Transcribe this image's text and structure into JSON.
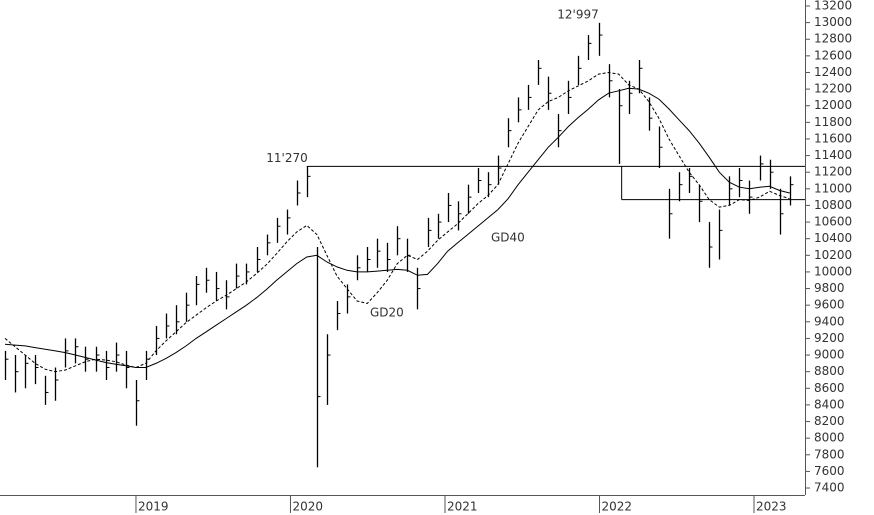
{
  "chart_data": {
    "type": "ohlc",
    "high": [
      9050,
      9000,
      9000,
      9000,
      8750,
      8850,
      9200,
      9200,
      9100,
      9100,
      9050,
      9150,
      9050,
      8700,
      9050,
      9350,
      9500,
      9600,
      9750,
      9950,
      10050,
      10000,
      9900,
      10100,
      10100,
      10300,
      10450,
      10650,
      10750,
      11100,
      11270,
      10300,
      9250,
      9650,
      9850,
      10200,
      10300,
      10400,
      10350,
      10550,
      10400,
      10050,
      10650,
      10700,
      10950,
      10850,
      11050,
      11250,
      11200,
      11400,
      11850,
      12100,
      12250,
      12550,
      12350,
      11900,
      12300,
      12600,
      12850,
      12997,
      12500,
      12200,
      12300,
      12550,
      12100,
      11750,
      11000,
      11200,
      11250,
      11050,
      10600,
      10750,
      11150,
      11250,
      11100,
      11400,
      11350,
      11000,
      11150
    ],
    "low": [
      8700,
      8550,
      8600,
      8650,
      8400,
      8450,
      8850,
      8900,
      8800,
      8800,
      8700,
      8800,
      8600,
      8150,
      8700,
      9000,
      9200,
      9250,
      9400,
      9600,
      9750,
      9650,
      9550,
      9800,
      9850,
      10000,
      10200,
      10350,
      10450,
      10800,
      10900,
      7650,
      8400,
      9300,
      9500,
      9900,
      10000,
      10050,
      10000,
      10200,
      10000,
      9550,
      10300,
      10400,
      10600,
      10500,
      10700,
      10950,
      10900,
      11050,
      11500,
      11800,
      11950,
      12250,
      11950,
      11500,
      11900,
      12250,
      12550,
      12600,
      12100,
      11300,
      11900,
      12150,
      11700,
      11250,
      10400,
      10850,
      10950,
      10600,
      10050,
      10150,
      10800,
      10900,
      10700,
      11100,
      11000,
      10450,
      10800
    ],
    "close": [
      8950,
      8800,
      8900,
      8850,
      8550,
      8700,
      9050,
      9100,
      8950,
      9000,
      8850,
      9000,
      8850,
      8450,
      8950,
      9200,
      9350,
      9400,
      9600,
      9850,
      9900,
      9800,
      9700,
      9950,
      10000,
      10150,
      10350,
      10550,
      10650,
      10950,
      11150,
      8500,
      9000,
      9500,
      9700,
      10050,
      10150,
      10250,
      10150,
      10400,
      10200,
      9800,
      10500,
      10600,
      10800,
      10700,
      10900,
      11100,
      11050,
      11250,
      11700,
      11950,
      12100,
      12450,
      12150,
      11700,
      12100,
      12450,
      12750,
      12850,
      12300,
      12000,
      12150,
      12450,
      11850,
      11500,
      10700,
      11050,
      11150,
      10850,
      10300,
      10500,
      11000,
      11100,
      10900,
      11300,
      11200,
      10700,
      11050
    ],
    "series": [
      {
        "name": "GD20",
        "color": "#000000",
        "style": "dashed",
        "values": [
          9200,
          9100,
          9000,
          8900,
          8830,
          8800,
          8820,
          8870,
          8920,
          8950,
          8940,
          8920,
          8880,
          8850,
          8900,
          9050,
          9170,
          9280,
          9390,
          9480,
          9570,
          9650,
          9720,
          9800,
          9880,
          9980,
          10090,
          10220,
          10360,
          10480,
          10560,
          10450,
          10200,
          9950,
          9800,
          9650,
          9620,
          9750,
          9900,
          10100,
          10200,
          10150,
          10250,
          10380,
          10480,
          10580,
          10700,
          10820,
          10920,
          11050,
          11300,
          11550,
          11750,
          11950,
          12050,
          12100,
          12180,
          12240,
          12300,
          12380,
          12400,
          12380,
          12250,
          12200,
          12050,
          11850,
          11600,
          11400,
          11200,
          11050,
          10870,
          10780,
          10800,
          10870,
          10860,
          10900,
          10970,
          10920,
          10880
        ]
      },
      {
        "name": "GD40",
        "color": "#000000",
        "style": "solid",
        "values": [
          9130,
          9120,
          9110,
          9090,
          9070,
          9050,
          9030,
          9000,
          8970,
          8940,
          8910,
          8890,
          8870,
          8850,
          8850,
          8900,
          8960,
          9030,
          9110,
          9200,
          9280,
          9360,
          9440,
          9520,
          9600,
          9690,
          9790,
          9900,
          10000,
          10100,
          10180,
          10200,
          10120,
          10060,
          10020,
          10000,
          10000,
          10010,
          10020,
          10030,
          10020,
          9960,
          9970,
          10100,
          10250,
          10350,
          10450,
          10550,
          10650,
          10750,
          10880,
          11050,
          11200,
          11350,
          11500,
          11620,
          11750,
          11860,
          11960,
          12070,
          12150,
          12180,
          12210,
          12200,
          12150,
          12080,
          11960,
          11830,
          11700,
          11550,
          11380,
          11200,
          11080,
          11020,
          11000,
          11020,
          11030,
          10980,
          10950
        ]
      }
    ],
    "levels": [
      11270,
      10870
    ],
    "annotations": [
      {
        "text": "11'270",
        "value": 11270
      },
      {
        "text": "12'997",
        "value": 12997
      }
    ],
    "ylim": [
      7316,
      13272
    ],
    "yticks": [
      7400,
      7600,
      7800,
      8000,
      8200,
      8400,
      8600,
      8800,
      9000,
      9200,
      9400,
      9600,
      9800,
      10000,
      10200,
      10400,
      10600,
      10800,
      11000,
      11200,
      11400,
      11600,
      11800,
      12000,
      12200,
      12400,
      12600,
      12800,
      13000,
      13200
    ],
    "xlim": [
      2018.12,
      2023.33
    ],
    "xticks": [
      2019,
      2020,
      2021,
      2022,
      2023
    ]
  }
}
